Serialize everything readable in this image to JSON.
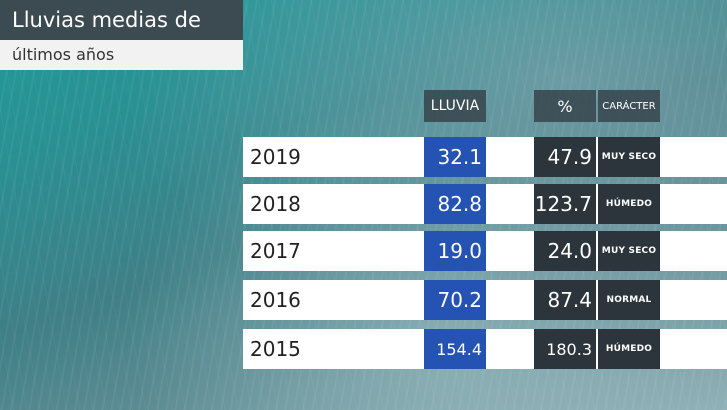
{
  "chart_data": {
    "type": "table",
    "title": "Lluvias medias de octubre",
    "subtitle": "últimos años",
    "columns": [
      "LLUVIA",
      "%",
      "CARÁCTER"
    ],
    "rows": [
      {
        "year": "2019",
        "lluvia": "32.1",
        "pct": "47.9",
        "caracter": "MUY SECO"
      },
      {
        "year": "2018",
        "lluvia": "82.8",
        "pct": "123.7",
        "caracter": "HÚMEDO"
      },
      {
        "year": "2017",
        "lluvia": "19.0",
        "pct": "24.0",
        "caracter": "MUY SECO"
      },
      {
        "year": "2016",
        "lluvia": "70.2",
        "pct": "87.4",
        "caracter": "NORMAL"
      },
      {
        "year": "2015",
        "lluvia": "154.4",
        "pct": "180.3",
        "caracter": "HÚMEDO"
      }
    ]
  },
  "colors": {
    "lluvia_cell": "#2453b3",
    "dark_cell": "#2c353b",
    "title_bg": "#3c4a52"
  }
}
